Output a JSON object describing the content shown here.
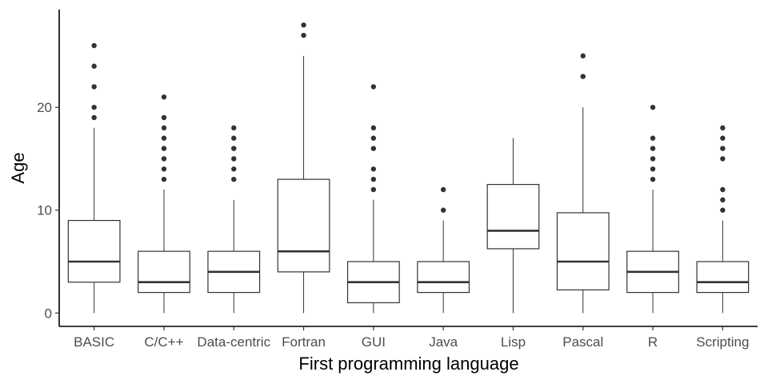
{
  "chart_data": {
    "type": "boxplot",
    "xlabel": "First programming language",
    "ylabel": "Age",
    "ylim": [
      -1.3,
      29.5
    ],
    "yticks": [
      0,
      10,
      20
    ],
    "grid": false,
    "categories": [
      "BASIC",
      "C/C++",
      "Data-centric",
      "Fortran",
      "GUI",
      "Java",
      "Lisp",
      "Pascal",
      "R",
      "Scripting"
    ],
    "boxes": [
      {
        "label": "BASIC",
        "whisker_low": 0,
        "q1": 3,
        "median": 5,
        "q3": 9,
        "whisker_high": 18,
        "outliers": [
          19,
          20,
          22,
          24,
          26
        ]
      },
      {
        "label": "C/C++",
        "whisker_low": 0,
        "q1": 2,
        "median": 3,
        "q3": 6,
        "whisker_high": 12,
        "outliers": [
          13,
          14,
          15,
          16,
          17,
          18,
          19,
          21
        ]
      },
      {
        "label": "Data-centric",
        "whisker_low": 0,
        "q1": 2,
        "median": 4,
        "q3": 6,
        "whisker_high": 11,
        "outliers": [
          13,
          14,
          15,
          16,
          17,
          18
        ]
      },
      {
        "label": "Fortran",
        "whisker_low": 0,
        "q1": 4,
        "median": 6,
        "q3": 13,
        "whisker_high": 25,
        "outliers": [
          27,
          28
        ]
      },
      {
        "label": "GUI",
        "whisker_low": 0,
        "q1": 1,
        "median": 3,
        "q3": 5,
        "whisker_high": 11,
        "outliers": [
          12,
          13,
          14,
          16,
          17,
          18,
          22
        ]
      },
      {
        "label": "Java",
        "whisker_low": 0,
        "q1": 2,
        "median": 3,
        "q3": 5,
        "whisker_high": 9,
        "outliers": [
          10,
          12
        ]
      },
      {
        "label": "Lisp",
        "whisker_low": 0,
        "q1": 6.25,
        "median": 8,
        "q3": 12.5,
        "whisker_high": 17,
        "outliers": []
      },
      {
        "label": "Pascal",
        "whisker_low": 0,
        "q1": 2.25,
        "median": 5,
        "q3": 9.75,
        "whisker_high": 20,
        "outliers": [
          23,
          25
        ]
      },
      {
        "label": "R",
        "whisker_low": 0,
        "q1": 2,
        "median": 4,
        "q3": 6,
        "whisker_high": 12,
        "outliers": [
          13,
          14,
          15,
          16,
          17,
          20
        ]
      },
      {
        "label": "Scripting",
        "whisker_low": 0,
        "q1": 2,
        "median": 3,
        "q3": 5,
        "whisker_high": 9,
        "outliers": [
          10,
          11,
          12,
          15,
          16,
          17,
          18
        ]
      }
    ]
  }
}
